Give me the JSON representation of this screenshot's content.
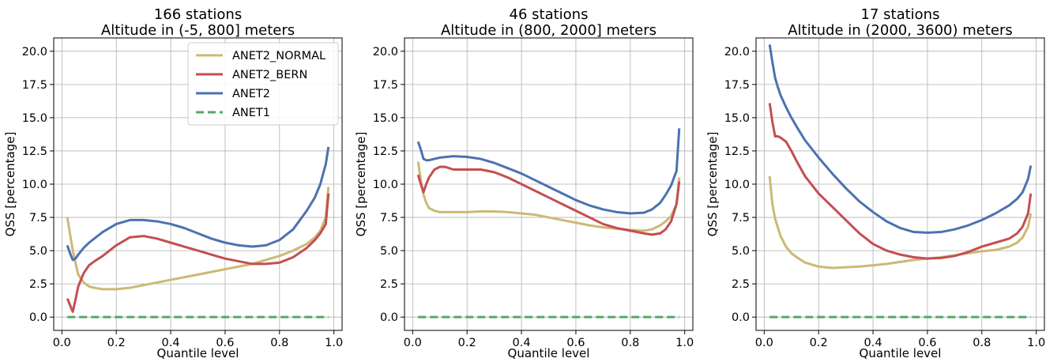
{
  "chart_data": [
    {
      "type": "line",
      "title": "166 stations\nAltitude in (-5, 800] meters",
      "xlabel": "Quantile level",
      "ylabel": "QSS [percentage]",
      "xlim": [
        -0.03,
        1.03
      ],
      "ylim": [
        -1.0,
        21.0
      ],
      "xticks": [
        "0.0",
        "0.2",
        "0.4",
        "0.6",
        "0.8",
        "1.0"
      ],
      "yticks": [
        "0.0",
        "2.5",
        "5.0",
        "7.5",
        "10.0",
        "12.5",
        "15.0",
        "17.5",
        "20.0"
      ],
      "grid": true,
      "legend": "top-right",
      "series": [
        {
          "name": "ANET2_NORMAL",
          "color": "#ccb974",
          "style": "solid",
          "x": [
            0.02,
            0.04,
            0.06,
            0.08,
            0.1,
            0.12,
            0.15,
            0.2,
            0.25,
            0.3,
            0.35,
            0.4,
            0.45,
            0.5,
            0.55,
            0.6,
            0.65,
            0.7,
            0.75,
            0.8,
            0.85,
            0.9,
            0.93,
            0.95,
            0.97,
            0.98
          ],
          "y": [
            7.5,
            5.0,
            3.2,
            2.6,
            2.3,
            2.2,
            2.1,
            2.1,
            2.2,
            2.4,
            2.6,
            2.8,
            3.0,
            3.2,
            3.4,
            3.6,
            3.8,
            4.0,
            4.3,
            4.6,
            5.0,
            5.5,
            6.0,
            6.5,
            7.5,
            9.8
          ]
        },
        {
          "name": "ANET2_BERN",
          "color": "#c44e52",
          "style": "solid",
          "x": [
            0.02,
            0.03,
            0.04,
            0.05,
            0.06,
            0.08,
            0.1,
            0.12,
            0.15,
            0.2,
            0.25,
            0.3,
            0.35,
            0.4,
            0.45,
            0.5,
            0.55,
            0.6,
            0.65,
            0.7,
            0.75,
            0.8,
            0.85,
            0.9,
            0.93,
            0.95,
            0.97,
            0.98
          ],
          "y": [
            1.4,
            0.9,
            0.4,
            1.3,
            2.3,
            3.3,
            3.9,
            4.2,
            4.6,
            5.4,
            6.0,
            6.1,
            5.9,
            5.6,
            5.3,
            5.0,
            4.7,
            4.4,
            4.2,
            4.0,
            4.0,
            4.1,
            4.5,
            5.2,
            5.8,
            6.3,
            7.0,
            9.3
          ]
        },
        {
          "name": "ANET2",
          "color": "#4c72b0",
          "style": "solid",
          "x": [
            0.02,
            0.03,
            0.04,
            0.05,
            0.06,
            0.08,
            0.1,
            0.15,
            0.2,
            0.25,
            0.3,
            0.35,
            0.4,
            0.45,
            0.5,
            0.55,
            0.6,
            0.65,
            0.7,
            0.75,
            0.8,
            0.85,
            0.9,
            0.93,
            0.95,
            0.97,
            0.98
          ],
          "y": [
            5.4,
            4.8,
            4.3,
            4.4,
            4.7,
            5.2,
            5.6,
            6.4,
            7.0,
            7.3,
            7.3,
            7.2,
            7.0,
            6.7,
            6.3,
            5.9,
            5.6,
            5.4,
            5.3,
            5.4,
            5.8,
            6.6,
            8.0,
            9.0,
            10.0,
            11.5,
            12.8
          ]
        },
        {
          "name": "ANET1",
          "color": "#55a868",
          "style": "dashed",
          "x": [
            0.02,
            0.98
          ],
          "y": [
            0.0,
            0.0
          ]
        }
      ]
    },
    {
      "type": "line",
      "title": "46 stations\nAltitude in (800, 2000] meters",
      "xlabel": "Quantile level",
      "ylabel": "QSS [percentage]",
      "xlim": [
        -0.03,
        1.03
      ],
      "ylim": [
        -1.0,
        21.0
      ],
      "xticks": [
        "0.0",
        "0.2",
        "0.4",
        "0.6",
        "0.8",
        "1.0"
      ],
      "yticks": [
        "0.0",
        "2.5",
        "5.0",
        "7.5",
        "10.0",
        "12.5",
        "15.0",
        "17.5",
        "20.0"
      ],
      "grid": true,
      "series": [
        {
          "name": "ANET2_NORMAL",
          "color": "#ccb974",
          "style": "solid",
          "x": [
            0.02,
            0.03,
            0.04,
            0.05,
            0.06,
            0.08,
            0.1,
            0.15,
            0.2,
            0.25,
            0.3,
            0.35,
            0.4,
            0.45,
            0.5,
            0.55,
            0.6,
            0.65,
            0.7,
            0.75,
            0.8,
            0.85,
            0.88,
            0.91,
            0.93,
            0.95,
            0.97,
            0.98
          ],
          "y": [
            11.7,
            10.3,
            9.2,
            8.6,
            8.2,
            8.0,
            7.9,
            7.9,
            7.9,
            7.95,
            7.95,
            7.9,
            7.8,
            7.7,
            7.5,
            7.3,
            7.1,
            6.9,
            6.75,
            6.65,
            6.55,
            6.5,
            6.6,
            6.9,
            7.2,
            7.6,
            8.5,
            10.5
          ]
        },
        {
          "name": "ANET2_BERN",
          "color": "#c44e52",
          "style": "solid",
          "x": [
            0.02,
            0.03,
            0.04,
            0.05,
            0.06,
            0.08,
            0.1,
            0.12,
            0.15,
            0.2,
            0.25,
            0.3,
            0.35,
            0.4,
            0.45,
            0.5,
            0.55,
            0.6,
            0.65,
            0.7,
            0.75,
            0.8,
            0.85,
            0.88,
            0.91,
            0.93,
            0.95,
            0.97,
            0.98
          ],
          "y": [
            10.7,
            10.0,
            9.4,
            10.0,
            10.5,
            11.1,
            11.3,
            11.3,
            11.1,
            11.1,
            11.1,
            10.9,
            10.5,
            10.0,
            9.5,
            9.0,
            8.5,
            8.0,
            7.5,
            7.0,
            6.7,
            6.5,
            6.3,
            6.2,
            6.3,
            6.6,
            7.2,
            8.5,
            10.2
          ]
        },
        {
          "name": "ANET2",
          "color": "#4c72b0",
          "style": "solid",
          "x": [
            0.02,
            0.03,
            0.04,
            0.05,
            0.06,
            0.08,
            0.1,
            0.15,
            0.2,
            0.25,
            0.3,
            0.35,
            0.4,
            0.45,
            0.5,
            0.55,
            0.6,
            0.65,
            0.7,
            0.75,
            0.8,
            0.85,
            0.88,
            0.91,
            0.93,
            0.95,
            0.97,
            0.98
          ],
          "y": [
            13.2,
            12.6,
            11.9,
            11.8,
            11.8,
            11.9,
            12.0,
            12.1,
            12.05,
            11.9,
            11.6,
            11.2,
            10.8,
            10.3,
            9.8,
            9.3,
            8.8,
            8.4,
            8.1,
            7.9,
            7.8,
            7.85,
            8.1,
            8.6,
            9.2,
            9.9,
            11.0,
            14.2
          ]
        },
        {
          "name": "ANET1",
          "color": "#55a868",
          "style": "dashed",
          "x": [
            0.02,
            0.98
          ],
          "y": [
            0.0,
            0.0
          ]
        }
      ]
    },
    {
      "type": "line",
      "title": "17 stations\nAltitude in (2000, 3600) meters",
      "xlabel": "Quantile level",
      "ylabel": "QSS [percentage]",
      "xlim": [
        -0.03,
        1.03
      ],
      "ylim": [
        -1.0,
        21.0
      ],
      "xticks": [
        "0.0",
        "0.2",
        "0.4",
        "0.6",
        "0.8",
        "1.0"
      ],
      "yticks": [
        "0.0",
        "2.5",
        "5.0",
        "7.5",
        "10.0",
        "12.5",
        "15.0",
        "17.5",
        "20.0"
      ],
      "grid": true,
      "series": [
        {
          "name": "ANET2_NORMAL",
          "color": "#ccb974",
          "style": "solid",
          "x": [
            0.02,
            0.03,
            0.04,
            0.06,
            0.08,
            0.1,
            0.12,
            0.15,
            0.2,
            0.25,
            0.3,
            0.35,
            0.4,
            0.45,
            0.5,
            0.55,
            0.6,
            0.65,
            0.7,
            0.75,
            0.8,
            0.85,
            0.9,
            0.93,
            0.95,
            0.97,
            0.98
          ],
          "y": [
            10.6,
            8.5,
            7.4,
            6.1,
            5.3,
            4.8,
            4.5,
            4.1,
            3.8,
            3.7,
            3.75,
            3.8,
            3.9,
            4.0,
            4.15,
            4.3,
            4.4,
            4.5,
            4.65,
            4.8,
            4.95,
            5.05,
            5.3,
            5.6,
            6.0,
            6.8,
            7.8
          ]
        },
        {
          "name": "ANET2_BERN",
          "color": "#c44e52",
          "style": "solid",
          "x": [
            0.02,
            0.03,
            0.04,
            0.05,
            0.06,
            0.08,
            0.1,
            0.12,
            0.15,
            0.2,
            0.25,
            0.3,
            0.35,
            0.4,
            0.45,
            0.5,
            0.55,
            0.6,
            0.65,
            0.7,
            0.75,
            0.8,
            0.85,
            0.9,
            0.93,
            0.95,
            0.97,
            0.98
          ],
          "y": [
            16.1,
            14.7,
            13.6,
            13.6,
            13.5,
            13.2,
            12.5,
            11.7,
            10.6,
            9.3,
            8.3,
            7.3,
            6.3,
            5.5,
            5.0,
            4.7,
            4.5,
            4.4,
            4.45,
            4.6,
            4.9,
            5.3,
            5.6,
            5.9,
            6.3,
            6.8,
            7.8,
            9.3
          ]
        },
        {
          "name": "ANET2",
          "color": "#4c72b0",
          "style": "solid",
          "x": [
            0.02,
            0.03,
            0.04,
            0.05,
            0.06,
            0.08,
            0.1,
            0.12,
            0.15,
            0.2,
            0.25,
            0.3,
            0.35,
            0.4,
            0.45,
            0.5,
            0.55,
            0.6,
            0.65,
            0.7,
            0.75,
            0.8,
            0.85,
            0.9,
            0.93,
            0.95,
            0.97,
            0.98
          ],
          "y": [
            20.5,
            19.2,
            18.0,
            17.3,
            16.7,
            15.8,
            15.0,
            14.3,
            13.3,
            12.0,
            10.8,
            9.7,
            8.7,
            7.9,
            7.2,
            6.7,
            6.4,
            6.35,
            6.4,
            6.6,
            6.9,
            7.3,
            7.8,
            8.4,
            8.9,
            9.4,
            10.4,
            11.4
          ]
        },
        {
          "name": "ANET1",
          "color": "#55a868",
          "style": "dashed",
          "x": [
            0.02,
            0.98
          ],
          "y": [
            0.0,
            0.0
          ]
        }
      ]
    }
  ]
}
